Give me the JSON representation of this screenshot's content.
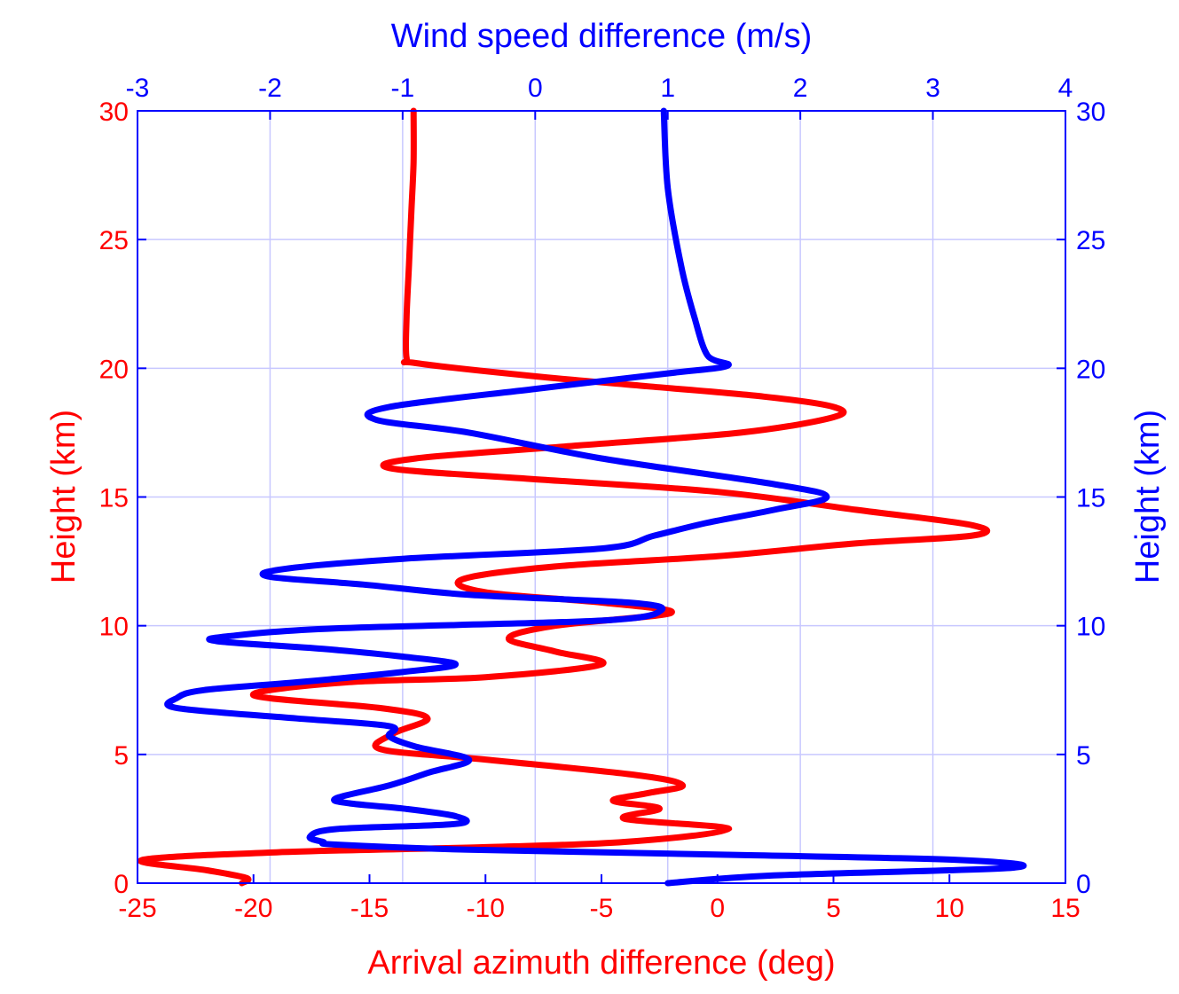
{
  "chart_data": {
    "type": "line",
    "colors": {
      "azimuth": "#ff0000",
      "wind": "#0000ff",
      "grid": "#c8c8ff"
    },
    "axes": {
      "bottom": {
        "label": "Arrival azimuth difference (deg)",
        "range": [
          -25,
          15
        ],
        "ticks": [
          -25,
          -20,
          -15,
          -10,
          -5,
          0,
          5,
          10,
          15
        ],
        "tick_labels": [
          "-25",
          "-20",
          "-15",
          "-10",
          "-5",
          "0",
          "5",
          "10",
          "15"
        ]
      },
      "top": {
        "label": "Wind speed difference (m/s)",
        "range": [
          -3,
          4
        ],
        "ticks": [
          -3,
          -2,
          -1,
          0,
          1,
          2,
          3,
          4
        ],
        "tick_labels": [
          "-3",
          "-2",
          "-1",
          "0",
          "1",
          "2",
          "3",
          "4"
        ]
      },
      "left": {
        "label": "Height (km)",
        "range": [
          0,
          30
        ],
        "ticks": [
          0,
          5,
          10,
          15,
          20,
          25,
          30
        ],
        "tick_labels": [
          "0",
          "5",
          "10",
          "15",
          "20",
          "25",
          "30"
        ]
      },
      "right": {
        "label": "Height (km)",
        "range": [
          0,
          30
        ],
        "ticks": [
          0,
          5,
          10,
          15,
          20,
          25,
          30
        ],
        "tick_labels": [
          "0",
          "5",
          "10",
          "15",
          "20",
          "25",
          "30"
        ]
      }
    },
    "grid": true,
    "series": [
      {
        "name": "Arrival azimuth difference",
        "axis": "bottom",
        "x": [
          -20.5,
          -20.3,
          -22.0,
          -24.8,
          -19.0,
          -10.0,
          -4.0,
          0.5,
          -4.0,
          -2.5,
          -4.5,
          -3.0,
          -1.5,
          -3.5,
          -10.0,
          -14.5,
          -14.0,
          -12.5,
          -14.5,
          -20.0,
          -16.0,
          -10.0,
          -5.0,
          -7.0,
          -9.0,
          -7.0,
          -2.0,
          -5.0,
          -10.0,
          -11.0,
          -7.0,
          0.0,
          6.0,
          11.0,
          11.0,
          6.0,
          0.0,
          -8.0,
          -14.0,
          -13.0,
          -6.0,
          1.0,
          5.0,
          5.0,
          2.0,
          -3.0,
          -8.0,
          -13.0,
          -13.4,
          -13.4,
          -13.3,
          -13.2,
          -13.1,
          -13.1
        ],
        "y": [
          0.0,
          0.2,
          0.5,
          0.9,
          1.2,
          1.4,
          1.6,
          2.1,
          2.5,
          2.9,
          3.2,
          3.5,
          3.8,
          4.2,
          4.8,
          5.2,
          5.8,
          6.4,
          6.8,
          7.3,
          7.8,
          8.0,
          8.5,
          9.0,
          9.5,
          10.0,
          10.5,
          10.9,
          11.3,
          11.8,
          12.3,
          12.7,
          13.2,
          13.5,
          13.9,
          14.5,
          15.2,
          15.7,
          16.1,
          16.5,
          17.0,
          17.5,
          18.1,
          18.5,
          18.9,
          19.3,
          19.7,
          20.2,
          20.4,
          22.0,
          24.0,
          26.0,
          28.0,
          30.0
        ]
      },
      {
        "name": "Wind speed difference",
        "axis": "top",
        "x": [
          1.0,
          1.8,
          3.6,
          3.2,
          1.5,
          -0.5,
          -1.5,
          -1.6,
          -1.7,
          -1.5,
          -0.6,
          -0.6,
          -1.0,
          -1.4,
          -1.5,
          -1.1,
          -0.8,
          -0.5,
          -0.9,
          -1.1,
          -1.1,
          -1.8,
          -2.7,
          -2.7,
          -2.5,
          -1.8,
          -1.0,
          -0.6,
          -1.0,
          -1.6,
          -2.4,
          -2.3,
          -1.5,
          0.5,
          0.95,
          0.7,
          -0.5,
          -1.3,
          -2.0,
          -1.9,
          -1.0,
          0.5,
          0.9,
          1.3,
          1.8,
          2.2,
          1.8,
          0.5,
          -0.5,
          -1.2,
          -1.1,
          0.0,
          1.0,
          1.45,
          1.3,
          1.2,
          1.1,
          1.0,
          0.97
        ],
        "y": [
          0.0,
          0.3,
          0.6,
          0.9,
          1.1,
          1.3,
          1.5,
          1.6,
          1.8,
          2.1,
          2.3,
          2.6,
          2.9,
          3.1,
          3.3,
          3.8,
          4.3,
          4.8,
          5.3,
          5.7,
          6.1,
          6.4,
          6.8,
          7.2,
          7.5,
          7.8,
          8.2,
          8.5,
          8.8,
          9.1,
          9.4,
          9.6,
          9.9,
          10.2,
          10.6,
          10.9,
          11.2,
          11.6,
          11.9,
          12.2,
          12.6,
          13.0,
          13.5,
          14.0,
          14.5,
          15.0,
          15.5,
          16.5,
          17.5,
          18.0,
          18.5,
          19.2,
          19.8,
          20.1,
          20.5,
          22.0,
          24.0,
          27.0,
          30.0
        ]
      }
    ]
  }
}
